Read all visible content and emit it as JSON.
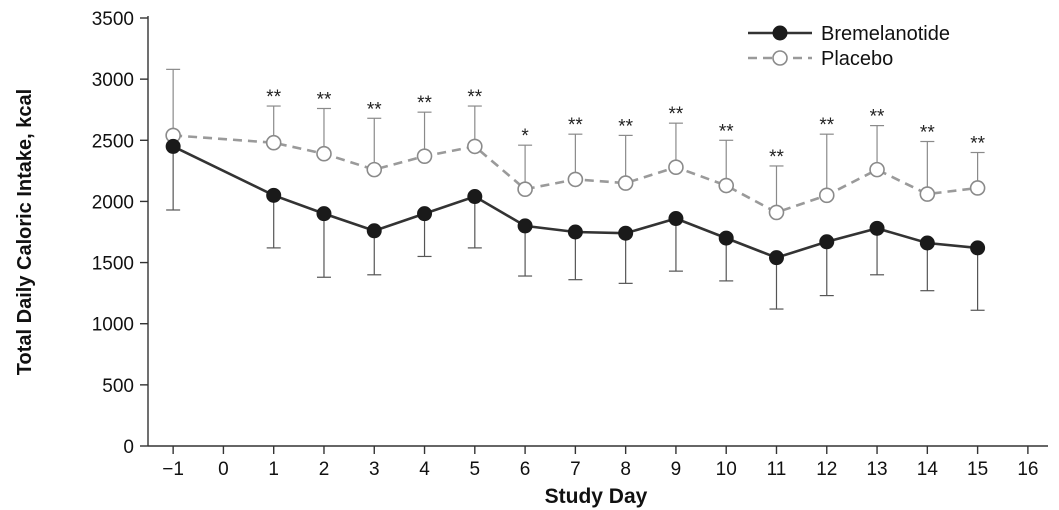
{
  "chart_data": {
    "type": "line",
    "xlabel": "Study Day",
    "ylabel": "Total Daily Caloric Intake, kcal",
    "xlim": [
      -1.5,
      16.4
    ],
    "ylim": [
      0,
      3500
    ],
    "xticks": [
      "−1",
      "0",
      "1",
      "2",
      "3",
      "4",
      "5",
      "6",
      "7",
      "8",
      "9",
      "10",
      "11",
      "12",
      "13",
      "14",
      "15",
      "16"
    ],
    "xtick_values": [
      -1,
      0,
      1,
      2,
      3,
      4,
      5,
      6,
      7,
      8,
      9,
      10,
      11,
      12,
      13,
      14,
      15,
      16
    ],
    "yticks": [
      "0",
      "500",
      "1000",
      "1500",
      "2000",
      "2500",
      "3000",
      "3500"
    ],
    "ytick_values": [
      0,
      500,
      1000,
      1500,
      2000,
      2500,
      3000,
      3500
    ],
    "x": [
      -1,
      1,
      2,
      3,
      4,
      5,
      6,
      7,
      8,
      9,
      10,
      11,
      12,
      13,
      14,
      15
    ],
    "series": [
      {
        "name": "Bremelanotide",
        "style": "solid",
        "marker": "filled-circle",
        "color": "#333333",
        "values": [
          2450,
          2050,
          1900,
          1760,
          1900,
          2040,
          1800,
          1750,
          1740,
          1860,
          1700,
          1540,
          1670,
          1780,
          1660,
          1620
        ],
        "error_lower": [
          1930,
          1620,
          1380,
          1400,
          1550,
          1620,
          1390,
          1360,
          1330,
          1430,
          1350,
          1120,
          1230,
          1400,
          1270,
          1110
        ]
      },
      {
        "name": "Placebo",
        "style": "dashed",
        "marker": "open-circle",
        "color": "#9a9a9a",
        "values": [
          2540,
          2480,
          2390,
          2260,
          2370,
          2450,
          2100,
          2180,
          2150,
          2280,
          2130,
          1910,
          2050,
          2260,
          2060,
          2110
        ],
        "error_upper": [
          3080,
          2780,
          2760,
          2680,
          2730,
          2780,
          2460,
          2550,
          2540,
          2640,
          2500,
          2290,
          2550,
          2620,
          2490,
          2400
        ]
      }
    ],
    "significance": [
      "",
      "**",
      "**",
      "**",
      "**",
      "**",
      "*",
      "**",
      "**",
      "**",
      "**",
      "**",
      "**",
      "**",
      "**",
      "**"
    ],
    "legend": "top-right",
    "grid": false
  }
}
